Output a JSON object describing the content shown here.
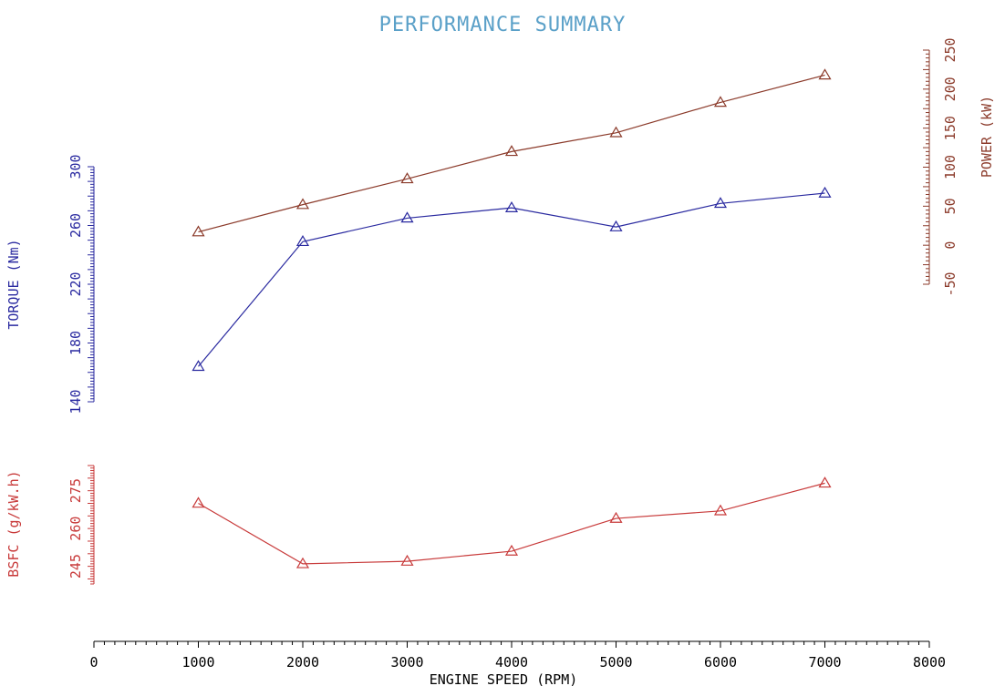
{
  "chart_data": {
    "type": "line",
    "title": "PERFORMANCE SUMMARY",
    "xlabel": "ENGINE SPEED (RPM)",
    "x": [
      1000,
      2000,
      3000,
      4000,
      5000,
      6000,
      7000
    ],
    "xlim": [
      0,
      8000
    ],
    "x_ticks": [
      "0",
      "1000",
      "2000",
      "3000",
      "4000",
      "5000",
      "6000",
      "7000",
      "8000"
    ],
    "colors": {
      "title": "#5aa0c8",
      "axis": "#000000",
      "torque": "#2a2aa0",
      "power": "#8b3a2a",
      "bsfc": "#c83a3a"
    },
    "panels": {
      "torque": {
        "ylabel": "TORQUE (Nm)",
        "ylim": [
          140,
          300
        ],
        "ticks": [
          "140",
          "180",
          "220",
          "260",
          "300"
        ],
        "values": [
          164,
          249,
          265,
          272,
          259,
          275,
          282
        ]
      },
      "power": {
        "ylabel": "POWER (kW)",
        "ylim": [
          -50,
          250
        ],
        "ticks": [
          "-50",
          "0",
          "50",
          "100",
          "150",
          "200",
          "250"
        ],
        "values": [
          17,
          52,
          85,
          120,
          144,
          183,
          218
        ]
      },
      "bsfc": {
        "ylabel": "BSFC (g/kW.h)",
        "ylim": [
          238,
          285
        ],
        "ticks": [
          "245",
          "260",
          "275"
        ],
        "values": [
          270,
          246,
          247,
          251,
          264,
          267,
          278
        ]
      }
    }
  }
}
